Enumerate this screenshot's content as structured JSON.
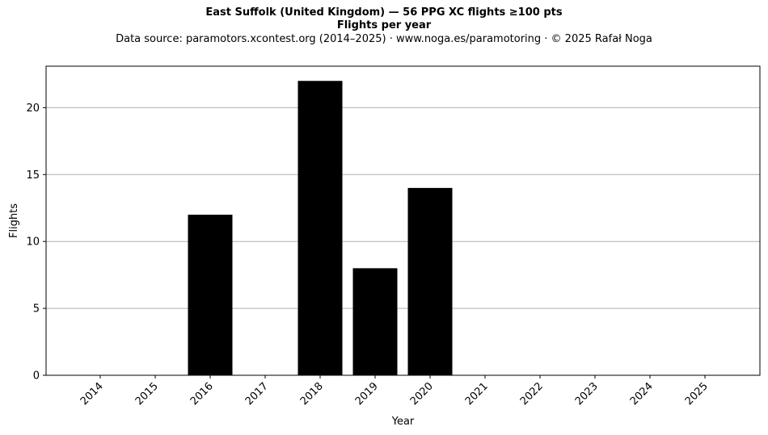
{
  "chart_data": {
    "type": "bar",
    "title": "East Suffolk (United Kingdom)  —  56 PPG XC flights ≥100 pts",
    "subtitle": "Flights per year",
    "source_note": "Data source: paramotors.xcontest.org (2014–2025)  ·  www.noga.es/paramotoring  ·  © 2025 Rafał Noga",
    "xlabel": "Year",
    "ylabel": "Flights",
    "categories": [
      "2014",
      "2015",
      "2016",
      "2017",
      "2018",
      "2019",
      "2020",
      "2021",
      "2022",
      "2023",
      "2024",
      "2025"
    ],
    "values": [
      0,
      0,
      12,
      0,
      22,
      8,
      14,
      0,
      0,
      0,
      0,
      0
    ],
    "ylim": [
      0,
      23.1
    ],
    "yticks": [
      0,
      5,
      10,
      15,
      20
    ],
    "grid": "horizontal",
    "bar_color": "#000000",
    "grid_color": "#b0b0b0"
  }
}
